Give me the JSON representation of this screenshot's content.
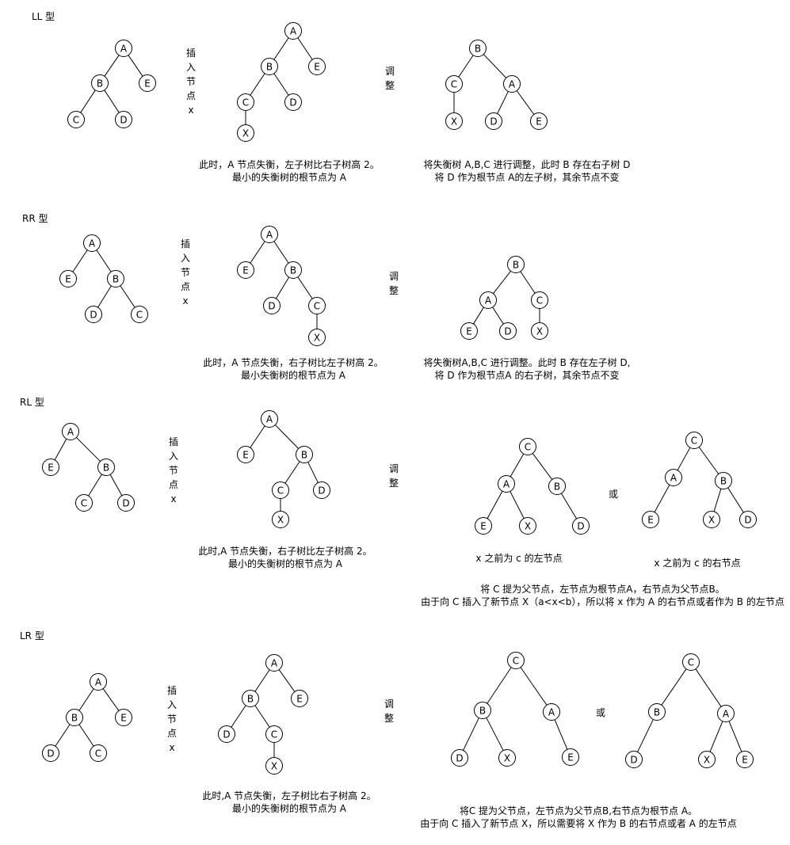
{
  "sections": [
    {
      "title": "LL 型",
      "insert_label": [
        "插",
        "入",
        "节",
        "点",
        "x"
      ],
      "adjust_label": [
        "调",
        "整"
      ],
      "caption_middle": [
        "此时，A 节点失衡，左子树比右子树高 2。",
        "最小的失衡树的根节点为 A"
      ],
      "caption_right": [
        "将失衡树 A,B,C 进行调整，此时 B 存在右子树 D",
        "将 D 作为根节点 A的左子树，其余节点不变"
      ],
      "trees": [
        {
          "nodes": [
            "A",
            "B",
            "E",
            "C",
            "D"
          ]
        },
        {
          "nodes": [
            "A",
            "B",
            "E",
            "C",
            "D",
            "X"
          ]
        },
        {
          "nodes": [
            "B",
            "C",
            "A",
            "X",
            "D",
            "E"
          ]
        }
      ]
    },
    {
      "title": "RR 型",
      "insert_label": [
        "插",
        "入",
        "节",
        "点",
        "x"
      ],
      "adjust_label": [
        "调",
        "整"
      ],
      "caption_middle": [
        "此时，A 节点失衡，右子树比左子树高 2。",
        "最小失衡树的根节点为 A"
      ],
      "caption_right": [
        "将失衡树A,B,C 进行调整。此时 B 存在左子树 D,",
        "将 D 作为根节点A 的右子树，其余节点不变"
      ],
      "trees": [
        {
          "nodes": [
            "A",
            "E",
            "B",
            "D",
            "C"
          ]
        },
        {
          "nodes": [
            "A",
            "E",
            "B",
            "D",
            "C",
            "X"
          ]
        },
        {
          "nodes": [
            "B",
            "A",
            "C",
            "E",
            "D",
            "X"
          ]
        }
      ]
    },
    {
      "title": "RL 型",
      "insert_label": [
        "插",
        "入",
        "节",
        "点",
        "x"
      ],
      "adjust_label": [
        "调",
        "整"
      ],
      "or_label": "或",
      "caption_middle": [
        "此时,A 节点失衡，右子树比左子树高 2。",
        "最小的失衡树的根节点为 A"
      ],
      "caption_option1": "x 之前为 c 的左节点",
      "caption_option2": "x 之前为 c 的右节点",
      "caption_right": [
        "将 C 提为父节点，左节点为根节点A，右节点为父节点B。",
        "由于向 C 插入了新节点 X（a<x<b），所以将 x 作为 A 的右节点或者作为 B 的左节点"
      ],
      "trees": [
        {
          "nodes": [
            "A",
            "E",
            "B",
            "C",
            "D"
          ]
        },
        {
          "nodes": [
            "A",
            "E",
            "B",
            "C",
            "D",
            "X"
          ]
        },
        {
          "nodes": [
            "C",
            "A",
            "B",
            "E",
            "X",
            "D"
          ]
        },
        {
          "nodes": [
            "C",
            "A",
            "B",
            "E",
            "X",
            "D"
          ]
        }
      ]
    },
    {
      "title": "LR 型",
      "insert_label": [
        "插",
        "入",
        "节",
        "点",
        "x"
      ],
      "adjust_label": [
        "调",
        "整"
      ],
      "or_label": "或",
      "caption_middle": [
        "此时,A 节点失衡，左子树比右子树高 2。",
        "最小的失衡树的根节点为 A"
      ],
      "caption_right": [
        "将C 提为父节点，左节点为父节点B,右节点为根节点 A。",
        "由于向 C 插入了新节点 X，所以需要将 X 作为 B 的右节点或者 A 的左节点"
      ],
      "trees": [
        {
          "nodes": [
            "A",
            "B",
            "E",
            "D",
            "C"
          ]
        },
        {
          "nodes": [
            "A",
            "B",
            "E",
            "D",
            "C",
            "X"
          ]
        },
        {
          "nodes": [
            "C",
            "B",
            "A",
            "D",
            "X",
            "E"
          ]
        },
        {
          "nodes": [
            "C",
            "B",
            "A",
            "D",
            "X",
            "E"
          ]
        }
      ]
    }
  ]
}
